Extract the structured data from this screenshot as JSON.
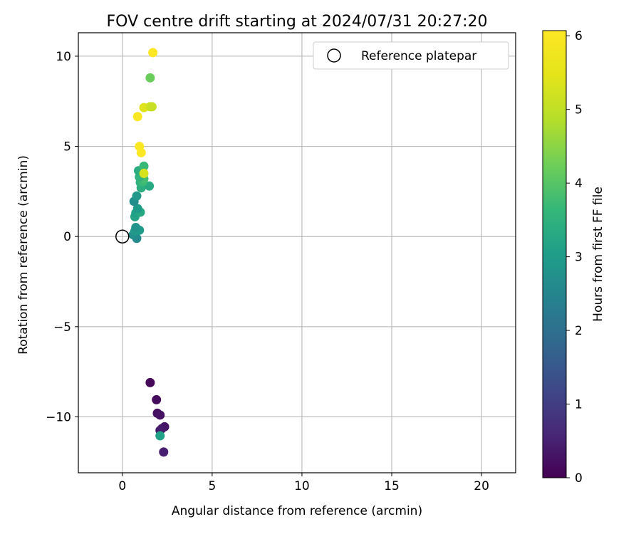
{
  "chart_data": {
    "type": "scatter",
    "title": "FOV centre drift starting at 2024/07/31 20:27:20",
    "xlabel": "Angular distance from reference (arcmin)",
    "ylabel": "Rotation from reference (arcmin)",
    "xlim": [
      -2.45,
      21.9
    ],
    "ylim": [
      -13.1,
      11.3
    ],
    "xticks": [
      0,
      5,
      10,
      15,
      20
    ],
    "xtick_labels": [
      "0",
      "5",
      "10",
      "15",
      "20"
    ],
    "yticks": [
      -10,
      -5,
      0,
      5,
      10
    ],
    "ytick_labels": [
      "−10",
      "−5",
      "0",
      "5",
      "10"
    ],
    "grid": true,
    "legend": {
      "placement": "top-right",
      "entries": [
        "Reference platepar"
      ]
    },
    "reference_point": {
      "x": 0,
      "y": 0,
      "label": "Reference platepar"
    },
    "colorbar": {
      "label": "Hours from first FF file",
      "range": [
        0,
        6.07
      ],
      "ticks": [
        0,
        1,
        2,
        3,
        4,
        5,
        6
      ],
      "tick_labels": [
        "0",
        "1",
        "2",
        "3",
        "4",
        "5",
        "6"
      ],
      "colormap": "viridis"
    },
    "points": [
      {
        "x": 1.55,
        "y": -8.1,
        "hours": 0.1
      },
      {
        "x": 1.9,
        "y": -9.05,
        "hours": 0.15
      },
      {
        "x": 1.95,
        "y": -9.8,
        "hours": 0.2
      },
      {
        "x": 2.1,
        "y": -9.9,
        "hours": 0.25
      },
      {
        "x": 2.35,
        "y": -10.55,
        "hours": 0.3
      },
      {
        "x": 2.2,
        "y": -10.65,
        "hours": 0.35
      },
      {
        "x": 2.1,
        "y": -10.75,
        "hours": 0.4
      },
      {
        "x": 2.3,
        "y": -11.95,
        "hours": 0.45
      },
      {
        "x": 2.1,
        "y": -11.05,
        "hours": 3.1
      },
      {
        "x": 0.8,
        "y": -0.1,
        "hours": 2.6
      },
      {
        "x": 0.6,
        "y": 0.1,
        "hours": 2.7
      },
      {
        "x": 0.7,
        "y": 0.3,
        "hours": 2.9
      },
      {
        "x": 0.95,
        "y": 0.35,
        "hours": 3.0
      },
      {
        "x": 0.75,
        "y": 0.5,
        "hours": 2.8
      },
      {
        "x": 0.7,
        "y": 1.1,
        "hours": 3.2
      },
      {
        "x": 0.75,
        "y": 1.3,
        "hours": 3.1
      },
      {
        "x": 1.0,
        "y": 1.35,
        "hours": 3.3
      },
      {
        "x": 0.85,
        "y": 1.55,
        "hours": 3.0
      },
      {
        "x": 0.65,
        "y": 1.95,
        "hours": 2.7
      },
      {
        "x": 0.8,
        "y": 2.25,
        "hours": 2.9
      },
      {
        "x": 1.05,
        "y": 2.7,
        "hours": 3.4
      },
      {
        "x": 1.5,
        "y": 2.8,
        "hours": 3.3
      },
      {
        "x": 1.0,
        "y": 3.0,
        "hours": 3.5
      },
      {
        "x": 1.15,
        "y": 3.05,
        "hours": 3.7
      },
      {
        "x": 1.2,
        "y": 3.2,
        "hours": 3.8
      },
      {
        "x": 0.95,
        "y": 3.3,
        "hours": 3.5
      },
      {
        "x": 1.1,
        "y": 3.45,
        "hours": 3.6
      },
      {
        "x": 0.9,
        "y": 3.65,
        "hours": 3.4
      },
      {
        "x": 1.2,
        "y": 3.9,
        "hours": 3.7
      },
      {
        "x": 1.2,
        "y": 3.5,
        "hours": 5.3
      },
      {
        "x": 0.95,
        "y": 5.0,
        "hours": 6.0
      },
      {
        "x": 1.05,
        "y": 4.65,
        "hours": 6.05
      },
      {
        "x": 0.85,
        "y": 6.65,
        "hours": 6.0
      },
      {
        "x": 1.2,
        "y": 7.15,
        "hours": 5.4
      },
      {
        "x": 1.55,
        "y": 7.2,
        "hours": 5.2
      },
      {
        "x": 1.65,
        "y": 7.2,
        "hours": 5.1
      },
      {
        "x": 1.55,
        "y": 8.8,
        "hours": 4.2
      },
      {
        "x": 1.7,
        "y": 10.2,
        "hours": 6.05
      }
    ]
  }
}
